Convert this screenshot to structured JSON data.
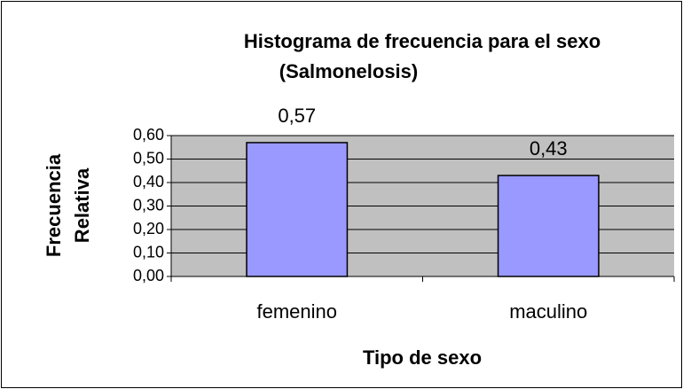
{
  "chart_data": {
    "type": "bar",
    "title": [
      "Histograma de frecuencia para el sexo",
      "(Salmonelosis)"
    ],
    "ylabel": [
      "Frecuencia",
      "Relativa"
    ],
    "xlabel": "Tipo de sexo",
    "categories": [
      "femenino",
      "maculino"
    ],
    "values": [
      0.57,
      0.43
    ],
    "value_labels": [
      "0,57",
      "0,43"
    ],
    "color": "#9999ff",
    "ylim": [
      0,
      0.6
    ],
    "yticks": [
      {
        "value": 0,
        "label": "0,00"
      },
      {
        "value": 0.1,
        "label": "0,10"
      },
      {
        "value": 0.2,
        "label": "0,20"
      },
      {
        "value": 0.3,
        "label": "0,30"
      },
      {
        "value": 0.4,
        "label": "0,40"
      },
      {
        "value": 0.5,
        "label": "0,50"
      },
      {
        "value": 0.6,
        "label": "0,60"
      }
    ],
    "grid": true
  }
}
